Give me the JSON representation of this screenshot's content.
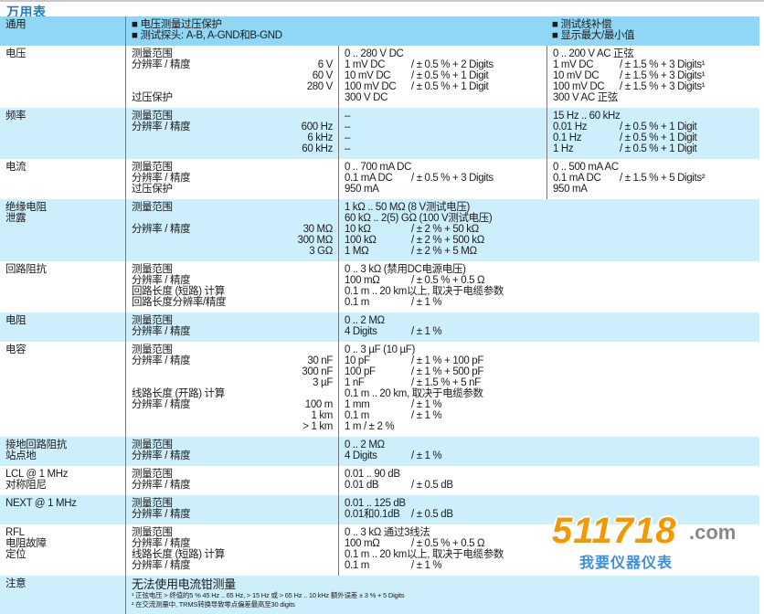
{
  "title": "万用表",
  "colors": {
    "header_bg": "#8fd7f5",
    "alt_row_bg": "#cdeefb",
    "title": "#1a7cc4"
  },
  "header": {
    "label": "通用",
    "left_bullets": [
      "■ 电压测量过压保护",
      "■ 测试探头: A-B, A-GND和B-GND"
    ],
    "right_bullets": [
      "■ 测试线补偿",
      "■ 显示最大/最小值"
    ]
  },
  "rows": [
    {
      "label": [
        "电压"
      ],
      "params": [
        [
          "测量范围",
          ""
        ],
        [
          "分辨率 / 精度",
          "6 V"
        ],
        [
          "",
          "60 V"
        ],
        [
          "",
          "280 V"
        ],
        [
          "过压保护",
          ""
        ]
      ],
      "dc": [
        [
          "0 .. 280 V DC",
          ""
        ],
        [
          "1 mV DC",
          "/ ± 0.5 % + 2 Digits"
        ],
        [
          "10 mV DC",
          "/ ± 0.5 % + 1 Digit"
        ],
        [
          "100 mV DC",
          "/ ± 0.5 % + 1 Digit"
        ],
        [
          "300 V DC",
          ""
        ]
      ],
      "ac": [
        [
          "0 .. 200 V AC 正弦",
          ""
        ],
        [
          "1 mV DC",
          "/ ± 1.5 % + 3 Digits¹"
        ],
        [
          "10 mV DC",
          "/ ± 1.5 % + 3 Digits¹"
        ],
        [
          "100 mV DC",
          "/ ± 1.5 % + 3 Digits¹"
        ],
        [
          "300 V AC 正弦",
          ""
        ]
      ]
    },
    {
      "label": [
        "频率"
      ],
      "params": [
        [
          "测量范围",
          ""
        ],
        [
          "分辨率 / 精度",
          "600 Hz"
        ],
        [
          "",
          "6 kHz"
        ],
        [
          "",
          "60 kHz"
        ]
      ],
      "dc": [
        [
          "–",
          ""
        ],
        [
          "–",
          ""
        ],
        [
          "–",
          ""
        ],
        [
          "–",
          ""
        ]
      ],
      "ac": [
        [
          "15 Hz .. 60 kHz",
          ""
        ],
        [
          "0.01 Hz",
          "/ ± 0.5 % + 1 Digit"
        ],
        [
          "0.1 Hz",
          "/ ± 0.5 % + 1 Digit"
        ],
        [
          "1 Hz",
          "/ ± 0.5 % + 1 Digit"
        ]
      ]
    },
    {
      "label": [
        "电流"
      ],
      "params": [
        [
          "测量范围",
          ""
        ],
        [
          "分辨率 / 精度",
          ""
        ],
        [
          "过压保护",
          ""
        ]
      ],
      "dc": [
        [
          "0 .. 700 mA DC",
          ""
        ],
        [
          "0.1 mA DC",
          "/ ± 0.5 % + 3 Digits"
        ],
        [
          "950 mA",
          ""
        ]
      ],
      "ac": [
        [
          "0 .. 500 mA AC",
          ""
        ],
        [
          "0.1 mA DC",
          "/ ± 1.5 % + 5 Digits²"
        ],
        [
          "950 mA",
          ""
        ]
      ]
    },
    {
      "label": [
        "绝缘电阻",
        "泄露"
      ],
      "params": [
        [
          "测量范围",
          ""
        ],
        [
          "",
          ""
        ],
        [
          "分辨率 / 精度",
          "30 MΩ"
        ],
        [
          "",
          "300 MΩ"
        ],
        [
          "",
          "3 GΩ"
        ]
      ],
      "dc": [
        [
          "1 kΩ .. 50 MΩ (8 V测试电压)",
          ""
        ],
        [
          "60 kΩ .. 2(5) GΩ (100 V测试电压)",
          ""
        ],
        [
          "10 kΩ",
          "/ ± 2 % + 50 kΩ"
        ],
        [
          "100 kΩ",
          "/ ± 2 % + 500 kΩ"
        ],
        [
          "1 MΩ",
          "/ ± 2 % + 5 MΩ"
        ]
      ],
      "ac": []
    },
    {
      "label": [
        "回路阻抗"
      ],
      "params": [
        [
          "测量范围",
          ""
        ],
        [
          "分辨率 / 精度",
          ""
        ],
        [
          "回路长度 (短路) 计算",
          ""
        ],
        [
          "回路长度分辨率/精度",
          ""
        ]
      ],
      "dc": [
        [
          "0 .. 3 kΩ (禁用DC电源电压)",
          ""
        ],
        [
          "100 mΩ",
          "/ ± 0.5 % + 0.5 Ω"
        ],
        [
          "0.1 m .. 20 km以上, 取决于电缆参数",
          ""
        ],
        [
          "0.1 m",
          "/ ± 1 %"
        ]
      ],
      "ac": []
    },
    {
      "label": [
        "电阻"
      ],
      "params": [
        [
          "测量范围",
          ""
        ],
        [
          "分辨率 / 精度",
          ""
        ]
      ],
      "dc": [
        [
          "0 .. 2 MΩ",
          ""
        ],
        [
          "4 Digits",
          "/ ± 1 %"
        ]
      ],
      "ac": []
    },
    {
      "label": [
        "电容"
      ],
      "params": [
        [
          "测量范围",
          ""
        ],
        [
          "分辨率 / 精度",
          "30 nF"
        ],
        [
          "",
          "300 nF"
        ],
        [
          "",
          "3 µF"
        ],
        [
          "线路长度 (开路) 计算",
          ""
        ],
        [
          "分辨率 / 精度",
          "100 m"
        ],
        [
          "",
          "1 km"
        ],
        [
          "",
          "> 1 km"
        ]
      ],
      "dc": [
        [
          "0 .. 3 µF (10 µF)",
          ""
        ],
        [
          "10 pF",
          "/ ± 1 % + 100 pF"
        ],
        [
          "100 pF",
          "/ ± 1 % + 500 pF"
        ],
        [
          "1 nF",
          "/ ± 1.5 % + 5 nF"
        ],
        [
          "0.1 m .. 20 km, 取决于电缆参数",
          ""
        ],
        [
          "1 mm",
          "/ ± 1 %"
        ],
        [
          "0.1 m",
          "/ ± 1 %"
        ],
        [
          "1 m / ± 2 %",
          ""
        ]
      ],
      "ac": []
    },
    {
      "label": [
        "接地回路阻抗",
        "站点地"
      ],
      "params": [
        [
          "测量范围",
          ""
        ],
        [
          "分辨率 / 精度",
          ""
        ]
      ],
      "dc": [
        [
          "0 .. 2 MΩ",
          ""
        ],
        [
          "4 Digits",
          "/ ± 1 %"
        ]
      ],
      "ac": []
    },
    {
      "label": [
        "LCL @ 1 MHz",
        "对称阻尼"
      ],
      "params": [
        [
          "测量范围",
          ""
        ],
        [
          "分辨率 / 精度",
          ""
        ]
      ],
      "dc": [
        [
          "0.01 .. 90 dB",
          ""
        ],
        [
          "0.01 dB",
          "/ ± 0.5 dB"
        ]
      ],
      "ac": []
    },
    {
      "label": [
        "NEXT @ 1 MHz"
      ],
      "params": [
        [
          "测量范围",
          ""
        ],
        [
          "分辨率 / 精度",
          ""
        ]
      ],
      "dc": [
        [
          "0.01 .. 125 dB",
          ""
        ],
        [
          "0.01和0.1dB",
          "/ ± 0.5 dB"
        ]
      ],
      "ac": []
    },
    {
      "label": [
        "RFL",
        "电阻故障",
        "定位"
      ],
      "params": [
        [
          "测量范围",
          ""
        ],
        [
          "分辨率 / 精度",
          ""
        ],
        [
          "线路长度 (短路) 计算",
          ""
        ],
        [
          "分辨率 / 精度",
          ""
        ]
      ],
      "dc": [
        [
          "0 .. 3 kΩ 通过3线法",
          ""
        ],
        [
          "100 mΩ",
          "/ ± 0.5 % + 0.5 Ω"
        ],
        [
          "0.1 m .. 20 km以上, 取决于电缆参数",
          ""
        ],
        [
          "0.1 m",
          "/ ± 1 %"
        ]
      ],
      "ac": []
    }
  ],
  "note": {
    "label": "注意",
    "main": "无法使用电流钳测量",
    "footnotes": [
      "¹ 正弦电压 > 终值的5 % 45 Hz .. 65 Hz, > 15 Hz 或 > 65 Hz .. 10 kHz 额外误差 ± 3 % + 5 Digits",
      "² 在交流测量中, TRMS转换导致零点偏差最高至30 digits"
    ]
  },
  "watermark": {
    "number": "511718",
    "cn": "我要仪器仪表",
    "domain": ".com"
  }
}
